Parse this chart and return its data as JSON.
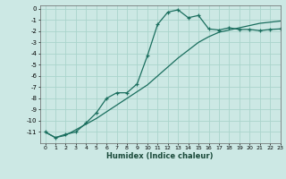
{
  "xlabel": "Humidex (Indice chaleur)",
  "bg_color": "#cce8e4",
  "grid_color": "#aad4cc",
  "line_color": "#1a6e5e",
  "xlim": [
    -0.5,
    23
  ],
  "ylim": [
    -12,
    0.3
  ],
  "yticks": [
    0,
    -1,
    -2,
    -3,
    -4,
    -5,
    -6,
    -7,
    -8,
    -9,
    -10,
    -11
  ],
  "xticks": [
    0,
    1,
    2,
    3,
    4,
    5,
    6,
    7,
    8,
    9,
    10,
    11,
    12,
    13,
    14,
    15,
    16,
    17,
    18,
    19,
    20,
    21,
    22,
    23
  ],
  "line1_x": [
    0,
    1,
    2,
    3,
    4,
    5,
    6,
    7,
    8,
    9,
    10,
    11,
    12,
    13,
    14,
    15,
    16,
    17,
    18,
    19,
    20,
    21,
    22,
    23
  ],
  "line1_y": [
    -11.0,
    -11.5,
    -11.2,
    -11.0,
    -10.2,
    -9.3,
    -8.0,
    -7.5,
    -7.5,
    -6.7,
    -4.2,
    -1.4,
    -0.3,
    -0.1,
    -0.8,
    -0.6,
    -1.8,
    -1.9,
    -1.7,
    -1.85,
    -1.85,
    -1.95,
    -1.85,
    -1.8
  ],
  "line2_x": [
    0,
    1,
    2,
    3,
    4,
    5,
    6,
    7,
    8,
    9,
    10,
    11,
    12,
    13,
    14,
    15,
    16,
    17,
    18,
    19,
    20,
    21,
    22,
    23
  ],
  "line2_y": [
    -11.0,
    -11.5,
    -11.3,
    -10.8,
    -10.3,
    -9.8,
    -9.2,
    -8.6,
    -8.0,
    -7.4,
    -6.8,
    -6.0,
    -5.2,
    -4.4,
    -3.7,
    -3.0,
    -2.5,
    -2.1,
    -1.9,
    -1.7,
    -1.5,
    -1.3,
    -1.2,
    -1.1
  ]
}
